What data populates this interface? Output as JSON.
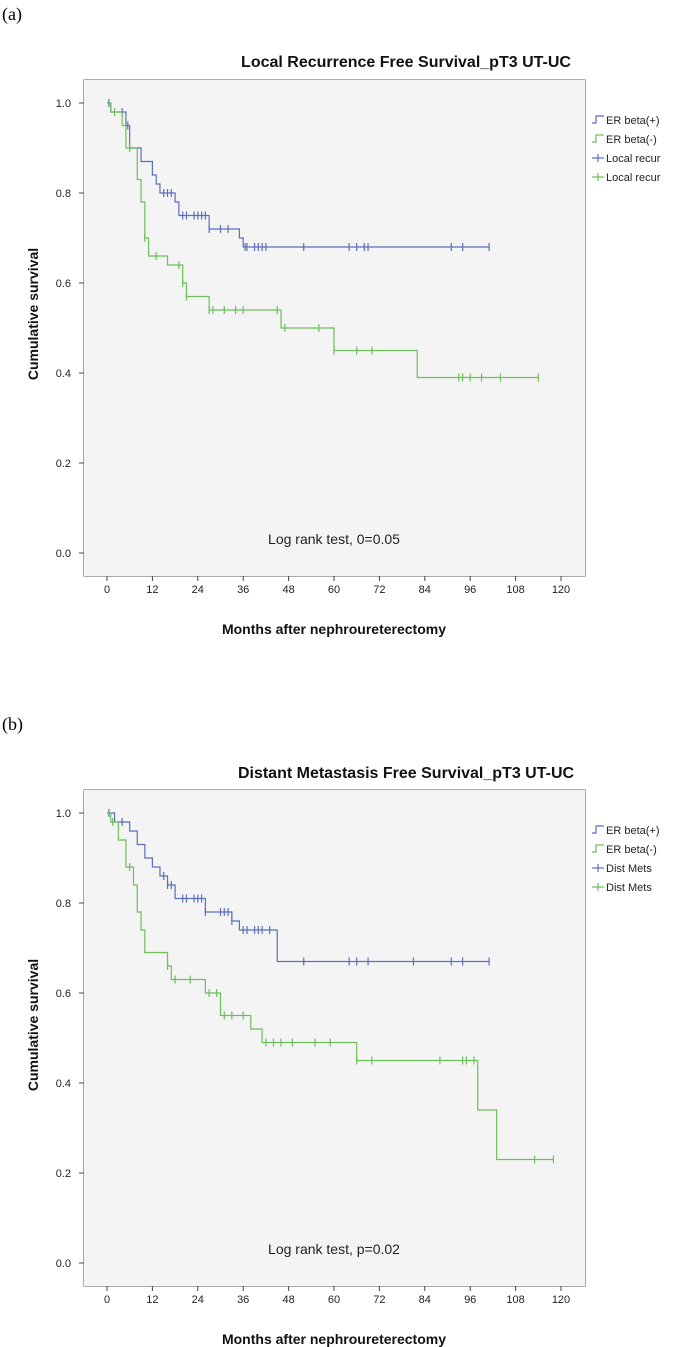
{
  "chart_data": [
    {
      "panel_label": "(a)",
      "type": "line",
      "subtype": "kaplan-meier",
      "title": "Local Recurrence Free Survival_pT3 UT-UC",
      "xlabel": "Months after nephroureterectomy",
      "ylabel": "Cumulative survival",
      "xlim": [
        -5,
        126
      ],
      "ylim": [
        -0.05,
        1.05
      ],
      "xticks": [
        0,
        12,
        24,
        36,
        48,
        60,
        72,
        84,
        96,
        108,
        120
      ],
      "yticks": [
        "0.0",
        "0.2",
        "0.4",
        "0.6",
        "0.8",
        "1.0"
      ],
      "annotation": "Log rank test, 0=0.05",
      "legend": [
        "ER beta(+)",
        "ER beta(-)",
        "Local recur",
        "Local recur"
      ],
      "series": [
        {
          "name": "ER beta(+)",
          "color": "#5b6fba",
          "steps": [
            [
              0,
              1.0
            ],
            [
              1,
              0.98
            ],
            [
              5,
              0.95
            ],
            [
              6,
              0.9
            ],
            [
              9,
              0.87
            ],
            [
              12,
              0.84
            ],
            [
              13,
              0.82
            ],
            [
              14,
              0.8
            ],
            [
              18,
              0.78
            ],
            [
              19,
              0.75
            ],
            [
              27,
              0.72
            ],
            [
              35,
              0.7
            ],
            [
              36,
              0.68
            ],
            [
              101,
              0.68
            ]
          ],
          "censors": [
            0.5,
            4,
            5.5,
            15,
            16,
            17,
            20,
            21,
            23,
            24,
            25,
            26,
            27,
            30,
            32,
            36.5,
            37,
            39,
            40,
            41,
            42,
            52,
            64,
            66,
            68,
            69,
            91,
            94,
            101
          ]
        },
        {
          "name": "ER beta(-)",
          "color": "#6cbf5a",
          "steps": [
            [
              0,
              1.0
            ],
            [
              1,
              0.98
            ],
            [
              4,
              0.95
            ],
            [
              5,
              0.9
            ],
            [
              8,
              0.83
            ],
            [
              9,
              0.78
            ],
            [
              10,
              0.7
            ],
            [
              11,
              0.66
            ],
            [
              16,
              0.64
            ],
            [
              20,
              0.6
            ],
            [
              21,
              0.57
            ],
            [
              27,
              0.54
            ],
            [
              46,
              0.5
            ],
            [
              60,
              0.45
            ],
            [
              82,
              0.39
            ],
            [
              114,
              0.39
            ]
          ],
          "censors": [
            2,
            6,
            10,
            13,
            19,
            20,
            21,
            27,
            28,
            31,
            34,
            36,
            45,
            47,
            56,
            60,
            66,
            70,
            93,
            94,
            96,
            99,
            104,
            114
          ]
        }
      ]
    },
    {
      "panel_label": "(b)",
      "type": "line",
      "subtype": "kaplan-meier",
      "title": "Distant Metastasis Free Survival_pT3 UT-UC",
      "xlabel": "Months after nephroureterectomy",
      "ylabel": "Cumulative survival",
      "xlim": [
        -5,
        126
      ],
      "ylim": [
        -0.05,
        1.05
      ],
      "xticks": [
        0,
        12,
        24,
        36,
        48,
        60,
        72,
        84,
        96,
        108,
        120
      ],
      "yticks": [
        "0.0",
        "0.2",
        "0.4",
        "0.6",
        "0.8",
        "1.0"
      ],
      "annotation": "Log rank test, p=0.02",
      "legend": [
        "ER beta(+)",
        "ER beta(-)",
        "Dist Mets",
        "Dist Mets"
      ],
      "series": [
        {
          "name": "ER beta(+)",
          "color": "#5b6fba",
          "steps": [
            [
              0,
              1.0
            ],
            [
              2,
              0.98
            ],
            [
              6,
              0.96
            ],
            [
              8,
              0.93
            ],
            [
              10,
              0.9
            ],
            [
              12,
              0.88
            ],
            [
              14,
              0.86
            ],
            [
              16,
              0.84
            ],
            [
              18,
              0.81
            ],
            [
              26,
              0.78
            ],
            [
              33,
              0.76
            ],
            [
              35,
              0.74
            ],
            [
              45,
              0.67
            ],
            [
              101,
              0.67
            ]
          ],
          "censors": [
            0.5,
            4,
            15,
            16,
            17,
            20,
            21,
            23,
            24,
            25,
            26,
            30,
            31,
            32,
            33,
            36,
            37,
            39,
            40,
            41,
            43,
            52,
            64,
            66,
            69,
            81,
            91,
            94,
            101
          ]
        },
        {
          "name": "ER beta(-)",
          "color": "#6cbf5a",
          "steps": [
            [
              0,
              1.0
            ],
            [
              1,
              0.98
            ],
            [
              3,
              0.94
            ],
            [
              5,
              0.88
            ],
            [
              7,
              0.84
            ],
            [
              8,
              0.78
            ],
            [
              9,
              0.74
            ],
            [
              10,
              0.69
            ],
            [
              16,
              0.66
            ],
            [
              17,
              0.63
            ],
            [
              26,
              0.6
            ],
            [
              30,
              0.55
            ],
            [
              38,
              0.52
            ],
            [
              41,
              0.49
            ],
            [
              66,
              0.45
            ],
            [
              98,
              0.34
            ],
            [
              103,
              0.23
            ],
            [
              118,
              0.23
            ]
          ],
          "censors": [
            1.5,
            6,
            16,
            18,
            22,
            27,
            29,
            31,
            33,
            36,
            42,
            44,
            46,
            49,
            55,
            59,
            66,
            70,
            88,
            94,
            95,
            97,
            113,
            118
          ]
        }
      ]
    }
  ]
}
